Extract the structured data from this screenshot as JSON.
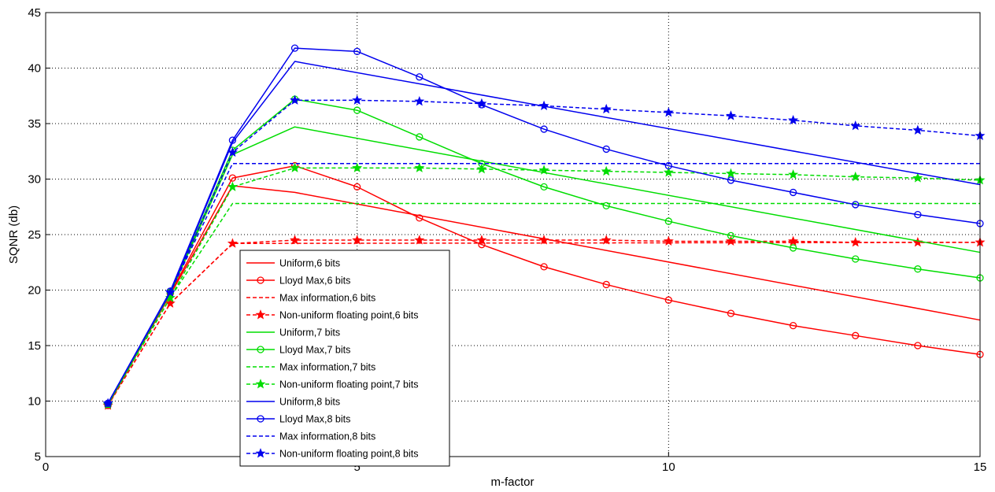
{
  "chart_data": {
    "type": "line",
    "xlabel": "m-factor",
    "ylabel": "SQNR (db)",
    "xlim": [
      0,
      15
    ],
    "ylim": [
      5,
      45
    ],
    "xticks": [
      0,
      5,
      10,
      15
    ],
    "yticks": [
      5,
      10,
      15,
      20,
      25,
      30,
      35,
      40,
      45
    ],
    "grid": true,
    "legend_position": "lower-left",
    "series": [
      {
        "name": "Uniform,6 bits",
        "color": "#ff0000",
        "dash": "solid",
        "marker": "none",
        "x": [
          1,
          2,
          3,
          4,
          15
        ],
        "y": [
          9.6,
          19.6,
          29.4,
          28.8,
          17.3
        ]
      },
      {
        "name": "Lloyd Max,6 bits",
        "color": "#ff0000",
        "dash": "solid",
        "marker": "circle",
        "x": [
          1,
          2,
          3,
          4,
          5,
          6,
          7,
          8,
          9,
          10,
          11,
          12,
          13,
          14,
          15
        ],
        "y": [
          9.6,
          19.7,
          30.1,
          31.2,
          29.3,
          26.5,
          24.1,
          22.1,
          20.5,
          19.1,
          17.9,
          16.8,
          15.9,
          15.0,
          14.2
        ]
      },
      {
        "name": "Max information,6 bits",
        "color": "#ff0000",
        "dash": "dashed",
        "marker": "none",
        "x": [
          1,
          2,
          3,
          15
        ],
        "y": [
          9.6,
          18.8,
          24.2,
          24.3
        ]
      },
      {
        "name": "Non-uniform floating point,6 bits",
        "color": "#ff0000",
        "dash": "dashed",
        "marker": "star",
        "x": [
          1,
          2,
          3,
          4,
          5,
          6,
          7,
          8,
          9,
          10,
          11,
          12,
          13,
          14,
          15
        ],
        "y": [
          9.6,
          18.8,
          24.2,
          24.5,
          24.5,
          24.5,
          24.5,
          24.5,
          24.5,
          24.4,
          24.4,
          24.4,
          24.3,
          24.3,
          24.3
        ]
      },
      {
        "name": "Uniform,7 bits",
        "color": "#00dd00",
        "dash": "solid",
        "marker": "none",
        "x": [
          1,
          2,
          3,
          4,
          15
        ],
        "y": [
          9.7,
          19.7,
          32.2,
          34.7,
          23.4
        ]
      },
      {
        "name": "Lloyd Max,7 bits",
        "color": "#00dd00",
        "dash": "solid",
        "marker": "circle",
        "x": [
          1,
          2,
          3,
          4,
          5,
          6,
          7,
          8,
          9,
          10,
          11,
          12,
          13,
          14,
          15
        ],
        "y": [
          9.7,
          19.8,
          32.6,
          37.2,
          36.2,
          33.8,
          31.4,
          29.3,
          27.6,
          26.2,
          24.9,
          23.8,
          22.8,
          21.9,
          21.1
        ]
      },
      {
        "name": "Max information,7 bits",
        "color": "#00dd00",
        "dash": "dashed",
        "marker": "none",
        "x": [
          1,
          2,
          3,
          15
        ],
        "y": [
          9.7,
          19.3,
          27.8,
          27.8
        ]
      },
      {
        "name": "Non-uniform floating point,7 bits",
        "color": "#00dd00",
        "dash": "dashed",
        "marker": "star",
        "x": [
          1,
          2,
          3,
          4,
          5,
          6,
          7,
          8,
          9,
          10,
          11,
          12,
          13,
          14,
          15
        ],
        "y": [
          9.7,
          19.3,
          29.3,
          31.0,
          31.0,
          31.0,
          30.9,
          30.8,
          30.7,
          30.6,
          30.5,
          30.4,
          30.2,
          30.1,
          29.9
        ]
      },
      {
        "name": "Uniform,8 bits",
        "color": "#0000ee",
        "dash": "solid",
        "marker": "none",
        "x": [
          1,
          2,
          3,
          4,
          15
        ],
        "y": [
          9.8,
          19.8,
          33.3,
          40.6,
          29.5
        ]
      },
      {
        "name": "Lloyd Max,8 bits",
        "color": "#0000ee",
        "dash": "solid",
        "marker": "circle",
        "x": [
          1,
          2,
          3,
          4,
          5,
          6,
          7,
          8,
          9,
          10,
          11,
          12,
          13,
          14,
          15
        ],
        "y": [
          9.8,
          19.9,
          33.5,
          41.8,
          41.5,
          39.2,
          36.7,
          34.5,
          32.7,
          31.2,
          29.9,
          28.8,
          27.7,
          26.8,
          26.0
        ]
      },
      {
        "name": "Max information,8 bits",
        "color": "#0000ee",
        "dash": "dashed",
        "marker": "none",
        "x": [
          1,
          2,
          3,
          15
        ],
        "y": [
          9.8,
          19.8,
          31.4,
          31.4
        ]
      },
      {
        "name": "Non-uniform floating point,8 bits",
        "color": "#0000ee",
        "dash": "dashed",
        "marker": "star",
        "x": [
          1,
          2,
          3,
          4,
          5,
          6,
          7,
          8,
          9,
          10,
          11,
          12,
          13,
          14,
          15
        ],
        "y": [
          9.8,
          19.8,
          32.4,
          37.1,
          37.1,
          37.0,
          36.8,
          36.6,
          36.3,
          36.0,
          35.7,
          35.3,
          34.8,
          34.4,
          33.9
        ]
      }
    ]
  }
}
